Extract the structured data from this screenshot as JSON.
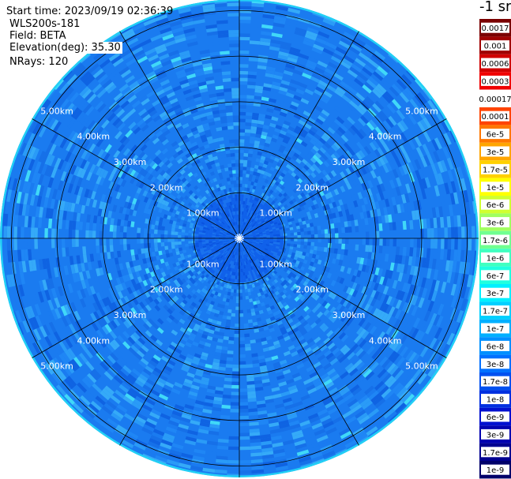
{
  "info": {
    "start_time": "Start time: 2023/09/19 02:36:39",
    "instrument": "WLS200s-181",
    "field": "Field: BETA",
    "elevation": "Elevation(deg): 35.30",
    "nrays": "NRays: 120"
  },
  "colorbar": {
    "unit_label": "-1 sr",
    "ticks": [
      "0.0017",
      "0.001",
      "0.0006",
      "0.0003",
      "0.00017",
      "0.0001",
      "6e-5",
      "3e-5",
      "1.7e-5",
      "1e-5",
      "6e-6",
      "3e-6",
      "1.7e-6",
      "1e-6",
      "6e-7",
      "3e-7",
      "1.7e-7",
      "1e-7",
      "6e-8",
      "3e-8",
      "1.7e-8",
      "1e-8",
      "6e-9",
      "3e-9",
      "1.7e-9",
      "1e-9"
    ],
    "colors": [
      "#7a0000",
      "#a00000",
      "#d00000",
      "#f00000",
      "#ffffff",
      "#ff4400",
      "#ff7700",
      "#ffa500",
      "#ffd000",
      "#ffff00",
      "#d0ff30",
      "#a0ff60",
      "#70ff90",
      "#40ffc0",
      "#20ffe0",
      "#00f0ff",
      "#00d0ff",
      "#00b0ff",
      "#0090ff",
      "#0070ff",
      "#0050f0",
      "#0030e0",
      "#0010d0",
      "#0000b0",
      "#000090",
      "#00006a"
    ]
  },
  "chart_data": {
    "type": "heatmap",
    "projection": "polar (PPI scan)",
    "field": "BETA",
    "range_ring_labels": [
      "1.00km",
      "2.00km",
      "3.00km",
      "4.00km",
      "5.00km"
    ],
    "range_rings_km": [
      1,
      2,
      3,
      4,
      5
    ],
    "max_range_km": 5.25,
    "radial_spokes_deg": [
      0,
      30,
      60,
      90,
      120,
      150,
      180,
      210,
      240,
      270,
      300,
      330
    ],
    "dominant_values": [
      {
        "region": "inner (< ~0.9 km)",
        "value_approx": "3e-8"
      },
      {
        "region": "outer (> ~1 km)",
        "value_approx": "6e-8"
      }
    ]
  }
}
